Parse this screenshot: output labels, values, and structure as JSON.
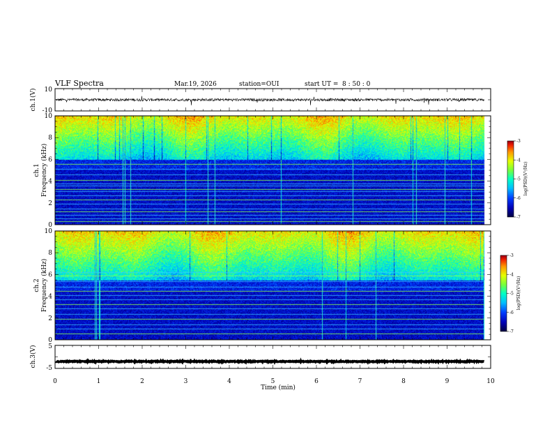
{
  "header": {
    "title": "VLF Spectra",
    "date": "Mar.19, 2026",
    "station": "station=OUI",
    "start_label": "start  UT =",
    "start_time": "8 : 50 : 0"
  },
  "chart_data": [
    {
      "type": "line",
      "name": "ch1-waveform",
      "ylabel": "ch.1(V)",
      "ylim": [
        -10,
        10
      ],
      "yticks": [
        "10",
        "-10"
      ],
      "baseline": 0,
      "amplitude_typical": 1.2
    },
    {
      "type": "heatmap",
      "name": "ch1-spectrogram",
      "ylabel": "Frequency (kHz)",
      "channel_label": "ch.1",
      "ylim": [
        0,
        10
      ],
      "yticks": [
        "0",
        "2",
        "4",
        "6",
        "8",
        "10"
      ],
      "xlim": [
        0,
        10
      ],
      "quiet_below_khz": 6,
      "noise_lines_khz": [
        0.3,
        0.6,
        0.9,
        1.2,
        1.5,
        1.9,
        2.3,
        2.7,
        3.1,
        3.3,
        3.6,
        3.8,
        4.1,
        4.6,
        5.1,
        5.6
      ],
      "colorbar": {
        "label": "log(PSD)(V²/Hz)",
        "range": [
          -7,
          -3
        ],
        "ticks": [
          "-3",
          "-4",
          "-5",
          "-6",
          "-7"
        ]
      }
    },
    {
      "type": "heatmap",
      "name": "ch2-spectrogram",
      "ylabel": "Frequency (kHz)",
      "channel_label": "ch.2",
      "ylim": [
        0,
        10
      ],
      "yticks": [
        "0",
        "2",
        "4",
        "6",
        "8",
        "10"
      ],
      "xlim": [
        0,
        10
      ],
      "quiet_below_khz": 5.5,
      "noise_lines_khz": [
        0.6,
        1.0,
        1.4,
        1.9,
        2.4,
        2.9,
        3.3,
        3.7,
        4.1,
        4.5,
        4.9,
        5.4,
        5.9,
        6.2
      ],
      "colorbar": {
        "label": "log(PSD)(V²/Hz)",
        "range": [
          -7,
          -3
        ],
        "ticks": [
          "-3",
          "-4",
          "-5",
          "-6",
          "-7"
        ]
      }
    },
    {
      "type": "line",
      "name": "ch3-waveform",
      "ylabel": "ch.3(V)",
      "ylim": [
        -5,
        5
      ],
      "yticks": [
        "5",
        "-5"
      ],
      "baseline": -2,
      "amplitude_typical": 0.2
    }
  ],
  "xaxis": {
    "label": "Time (min)",
    "range": [
      0,
      10
    ],
    "ticks": [
      "0",
      "1",
      "2",
      "3",
      "4",
      "5",
      "6",
      "7",
      "8",
      "9",
      "10"
    ],
    "data_end": 9.85
  }
}
